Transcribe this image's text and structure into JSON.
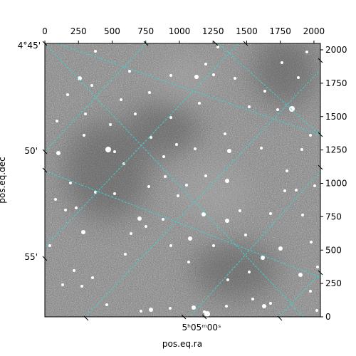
{
  "chart_data": {
    "type": "heatmap",
    "description_kind": "astronomical image with WCS coordinate grid",
    "colormap": "gray",
    "pixel_axes": {
      "x_ticks": [
        0,
        250,
        500,
        750,
        1000,
        1250,
        1500,
        1750,
        2000
      ],
      "y_ticks": [
        0,
        250,
        500,
        750,
        1000,
        1250,
        1500,
        1750,
        2000
      ],
      "xlim": [
        0,
        2048
      ],
      "ylim": [
        0,
        2048
      ]
    },
    "world_axes": {
      "xlabel": "pos.eq.ra",
      "ylabel": "pos.eq.dec",
      "ra_tick_labels": [
        "5ʰ05ᵐ00ˢ"
      ],
      "dec_tick_labels": [
        "4°45'",
        "50'",
        "55'"
      ]
    },
    "grid": true,
    "grid_color": "#3fd0d0",
    "background_noise_color": "#8a8a8a"
  },
  "labels": {
    "xlabel": "pos.eq.ra",
    "ylabel": "pos.eq.dec",
    "ra_tick": "5ʰ05ᵐ00ˢ",
    "dec_45": "4°45'",
    "dec_50": "50'",
    "dec_55": "55'"
  },
  "stars": [
    [
      112,
      110,
      3
    ],
    [
      95,
      133,
      2
    ],
    [
      129,
      120,
      2
    ],
    [
      82,
      215,
      3
    ],
    [
      152,
      210,
      4
    ],
    [
      161,
      213,
      2
    ],
    [
      118,
      190,
      2
    ],
    [
      161,
      272,
      2
    ],
    [
      134,
      270,
      2
    ],
    [
      92,
      295,
      2
    ],
    [
      117,
      326,
      3
    ],
    [
      107,
      292,
      2
    ],
    [
      184,
      328,
      2
    ],
    [
      205,
      318,
      2
    ],
    [
      176,
      357,
      2
    ],
    [
      130,
      390,
      2
    ],
    [
      115,
      402,
      2
    ],
    [
      212,
      435,
      3
    ],
    [
      198,
      437,
      2
    ],
    [
      239,
      433,
      2
    ],
    [
      272,
      432,
      3
    ],
    [
      291,
      441,
      4
    ],
    [
      287,
      438,
      2
    ],
    [
      318,
      430,
      2
    ],
    [
      371,
      430,
      3
    ],
    [
      380,
      426,
      2
    ],
    [
      445,
      436,
      2
    ],
    [
      436,
      409,
      2
    ],
    [
      422,
      386,
      3
    ],
    [
      394,
      349,
      3
    ],
    [
      369,
      362,
      3
    ],
    [
      320,
      393,
      2
    ],
    [
      350,
      382,
      2
    ],
    [
      265,
      368,
      2
    ],
    [
      267,
      335,
      3
    ],
    [
      286,
      301,
      3
    ],
    [
      319,
      310,
      3
    ],
    [
      337,
      296,
      2
    ],
    [
      400,
      268,
      2
    ],
    [
      416,
      267,
      2
    ],
    [
      403,
      240,
      2
    ],
    [
      319,
      254,
      3
    ],
    [
      289,
      247,
      2
    ],
    [
      262,
      260,
      2
    ],
    [
      232,
      248,
      2
    ],
    [
      209,
      262,
      2
    ],
    [
      229,
      308,
      2
    ],
    [
      196,
      307,
      3
    ],
    [
      248,
      203,
      2
    ],
    [
      274,
      209,
      2
    ],
    [
      316,
      188,
      2
    ],
    [
      322,
      212,
      3
    ],
    [
      367,
      208,
      2
    ],
    [
      424,
      210,
      2
    ],
    [
      410,
      153,
      4
    ],
    [
      390,
      154,
      2
    ],
    [
      372,
      128,
      2
    ],
    [
      300,
      105,
      2
    ],
    [
      289,
      90,
      2
    ],
    [
      276,
      108,
      3
    ],
    [
      240,
      106,
      2
    ],
    [
      182,
      100,
      2
    ],
    [
      134,
      72,
      2
    ],
    [
      306,
      66,
      2
    ],
    [
      396,
      88,
      2
    ],
    [
      431,
      73,
      2
    ],
    [
      419,
      109,
      2
    ],
    [
      436,
      190,
      2
    ],
    [
      442,
      261,
      2
    ],
    [
      425,
      302,
      2
    ],
    [
      437,
      340,
      2
    ],
    [
      446,
      375,
      2
    ],
    [
      212,
      193,
      2
    ],
    [
      174,
      230,
      2
    ],
    [
      99,
      257,
      2
    ],
    [
      78,
      280,
      2
    ],
    [
      70,
      345,
      2
    ],
    [
      88,
      400,
      2
    ],
    [
      104,
      380,
      2
    ],
    [
      150,
      428,
      2
    ],
    [
      240,
      345,
      2
    ],
    [
      355,
      420,
      2
    ],
    [
      345,
      330,
      2
    ],
    [
      380,
      300,
      2
    ],
    [
      300,
      345,
      2
    ],
    [
      250,
      275,
      2
    ],
    [
      230,
      220,
      2
    ],
    [
      190,
      160,
      2
    ],
    [
      155,
      175,
      2
    ],
    [
      120,
      160,
      2
    ],
    [
      80,
      170,
      2
    ],
    [
      350,
      150,
      2
    ],
    [
      330,
      110,
      2
    ],
    [
      280,
      145,
      2
    ],
    [
      240,
      165,
      2
    ],
    [
      210,
      130,
      2
    ],
    [
      170,
      140,
      2
    ]
  ]
}
